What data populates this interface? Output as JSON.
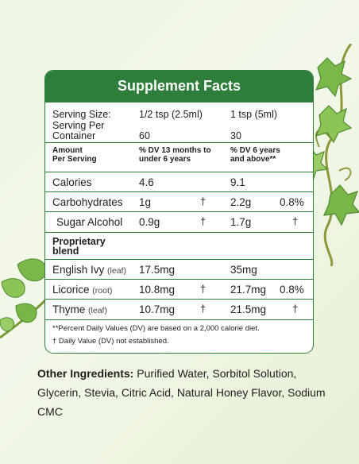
{
  "panel": {
    "title": "Supplement Facts",
    "serving": {
      "size_label": "Serving Size:",
      "size_child": "1/2 tsp (2.5ml)",
      "size_adult": "1 tsp (5ml)",
      "per_container_label_1": "Serving Per",
      "per_container_label_2": "Container",
      "per_container_child": "60",
      "per_container_adult": "30"
    },
    "header": {
      "amount_1": "Amount",
      "amount_2": "Per Serving",
      "child_1": "% DV 13 months to",
      "child_2": "under 6 years",
      "adult_1": "% DV 6 years",
      "adult_2": "and above**"
    },
    "rows": [
      {
        "name": "Calories",
        "sub": "",
        "child_amount": "4.6",
        "child_dv": "",
        "adult_amount": "9.1",
        "adult_dv": ""
      },
      {
        "name": "Carbohydrates",
        "sub": "",
        "child_amount": "1g",
        "child_dv": "†",
        "adult_amount": "2.2g",
        "adult_dv": "0.8%"
      },
      {
        "name": "Sugar Alcohol",
        "sub": "",
        "child_amount": "0.9g",
        "child_dv": "†",
        "adult_amount": "1.7g",
        "adult_dv": "†"
      }
    ],
    "blend_label_1": "Proprietary",
    "blend_label_2": "blend",
    "blend_rows": [
      {
        "name": "English Ivy",
        "sub": "(leaf)",
        "child_amount": "17.5mg",
        "child_dv": "",
        "adult_amount": "35mg",
        "adult_dv": ""
      },
      {
        "name": "Licorice",
        "sub": "(root)",
        "child_amount": "10.8mg",
        "child_dv": "†",
        "adult_amount": "21.7mg",
        "adult_dv": "0.8%"
      },
      {
        "name": "Thyme",
        "sub": "(leaf)",
        "child_amount": "10.7mg",
        "child_dv": "†",
        "adult_amount": "21.5mg",
        "adult_dv": "†"
      }
    ],
    "footnote_1": "**Percent Daily Values (DV) are based on a 2,000 calorie diet.",
    "footnote_2": "† Daily Value (DV) not established."
  },
  "other_ingredients": {
    "label": "Other Ingredients:",
    "text": "Purified Water, Sorbitol Solution, Glycerin, Stevia, Citric Acid, Natural Honey Flavor, Sodium CMC"
  },
  "colors": {
    "panel_green": "#2f7d3a",
    "background": "#eef5e2",
    "leaf_green": "#7bb84a"
  }
}
